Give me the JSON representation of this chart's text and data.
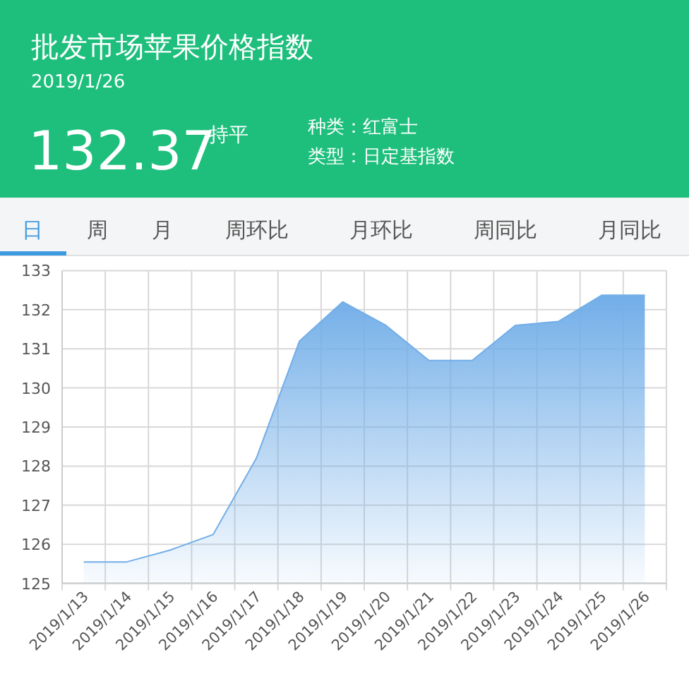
{
  "chart_data": {
    "type": "area",
    "title": "批发市场苹果价格指数",
    "subtitle": "2019/1/26",
    "annotations": [
      "132.37",
      "持平",
      "种类：红富士",
      "类型：日定基指数",
      "日",
      "周",
      "月",
      "周环比",
      "月环比",
      "周同比",
      "月同比"
    ],
    "categories": [
      "2019/1/13",
      "2019/1/14",
      "2019/1/15",
      "2019/1/16",
      "2019/1/17",
      "2019/1/18",
      "2019/1/19",
      "2019/1/20",
      "2019/1/21",
      "2019/1/22",
      "2019/1/23",
      "2019/1/24",
      "2019/1/25",
      "2019/1/26"
    ],
    "series": [
      {
        "color": "#72aee8",
        "values": [
          125.55,
          125.55,
          125.85,
          126.25,
          128.2,
          131.2,
          132.2,
          131.6,
          130.7,
          130.7,
          131.6,
          131.7,
          132.37,
          132.37
        ]
      }
    ],
    "ylim": [
      125,
      133
    ],
    "yticks": [
      125,
      126,
      127,
      128,
      129,
      130,
      131,
      132,
      133
    ],
    "grid": true
  }
}
